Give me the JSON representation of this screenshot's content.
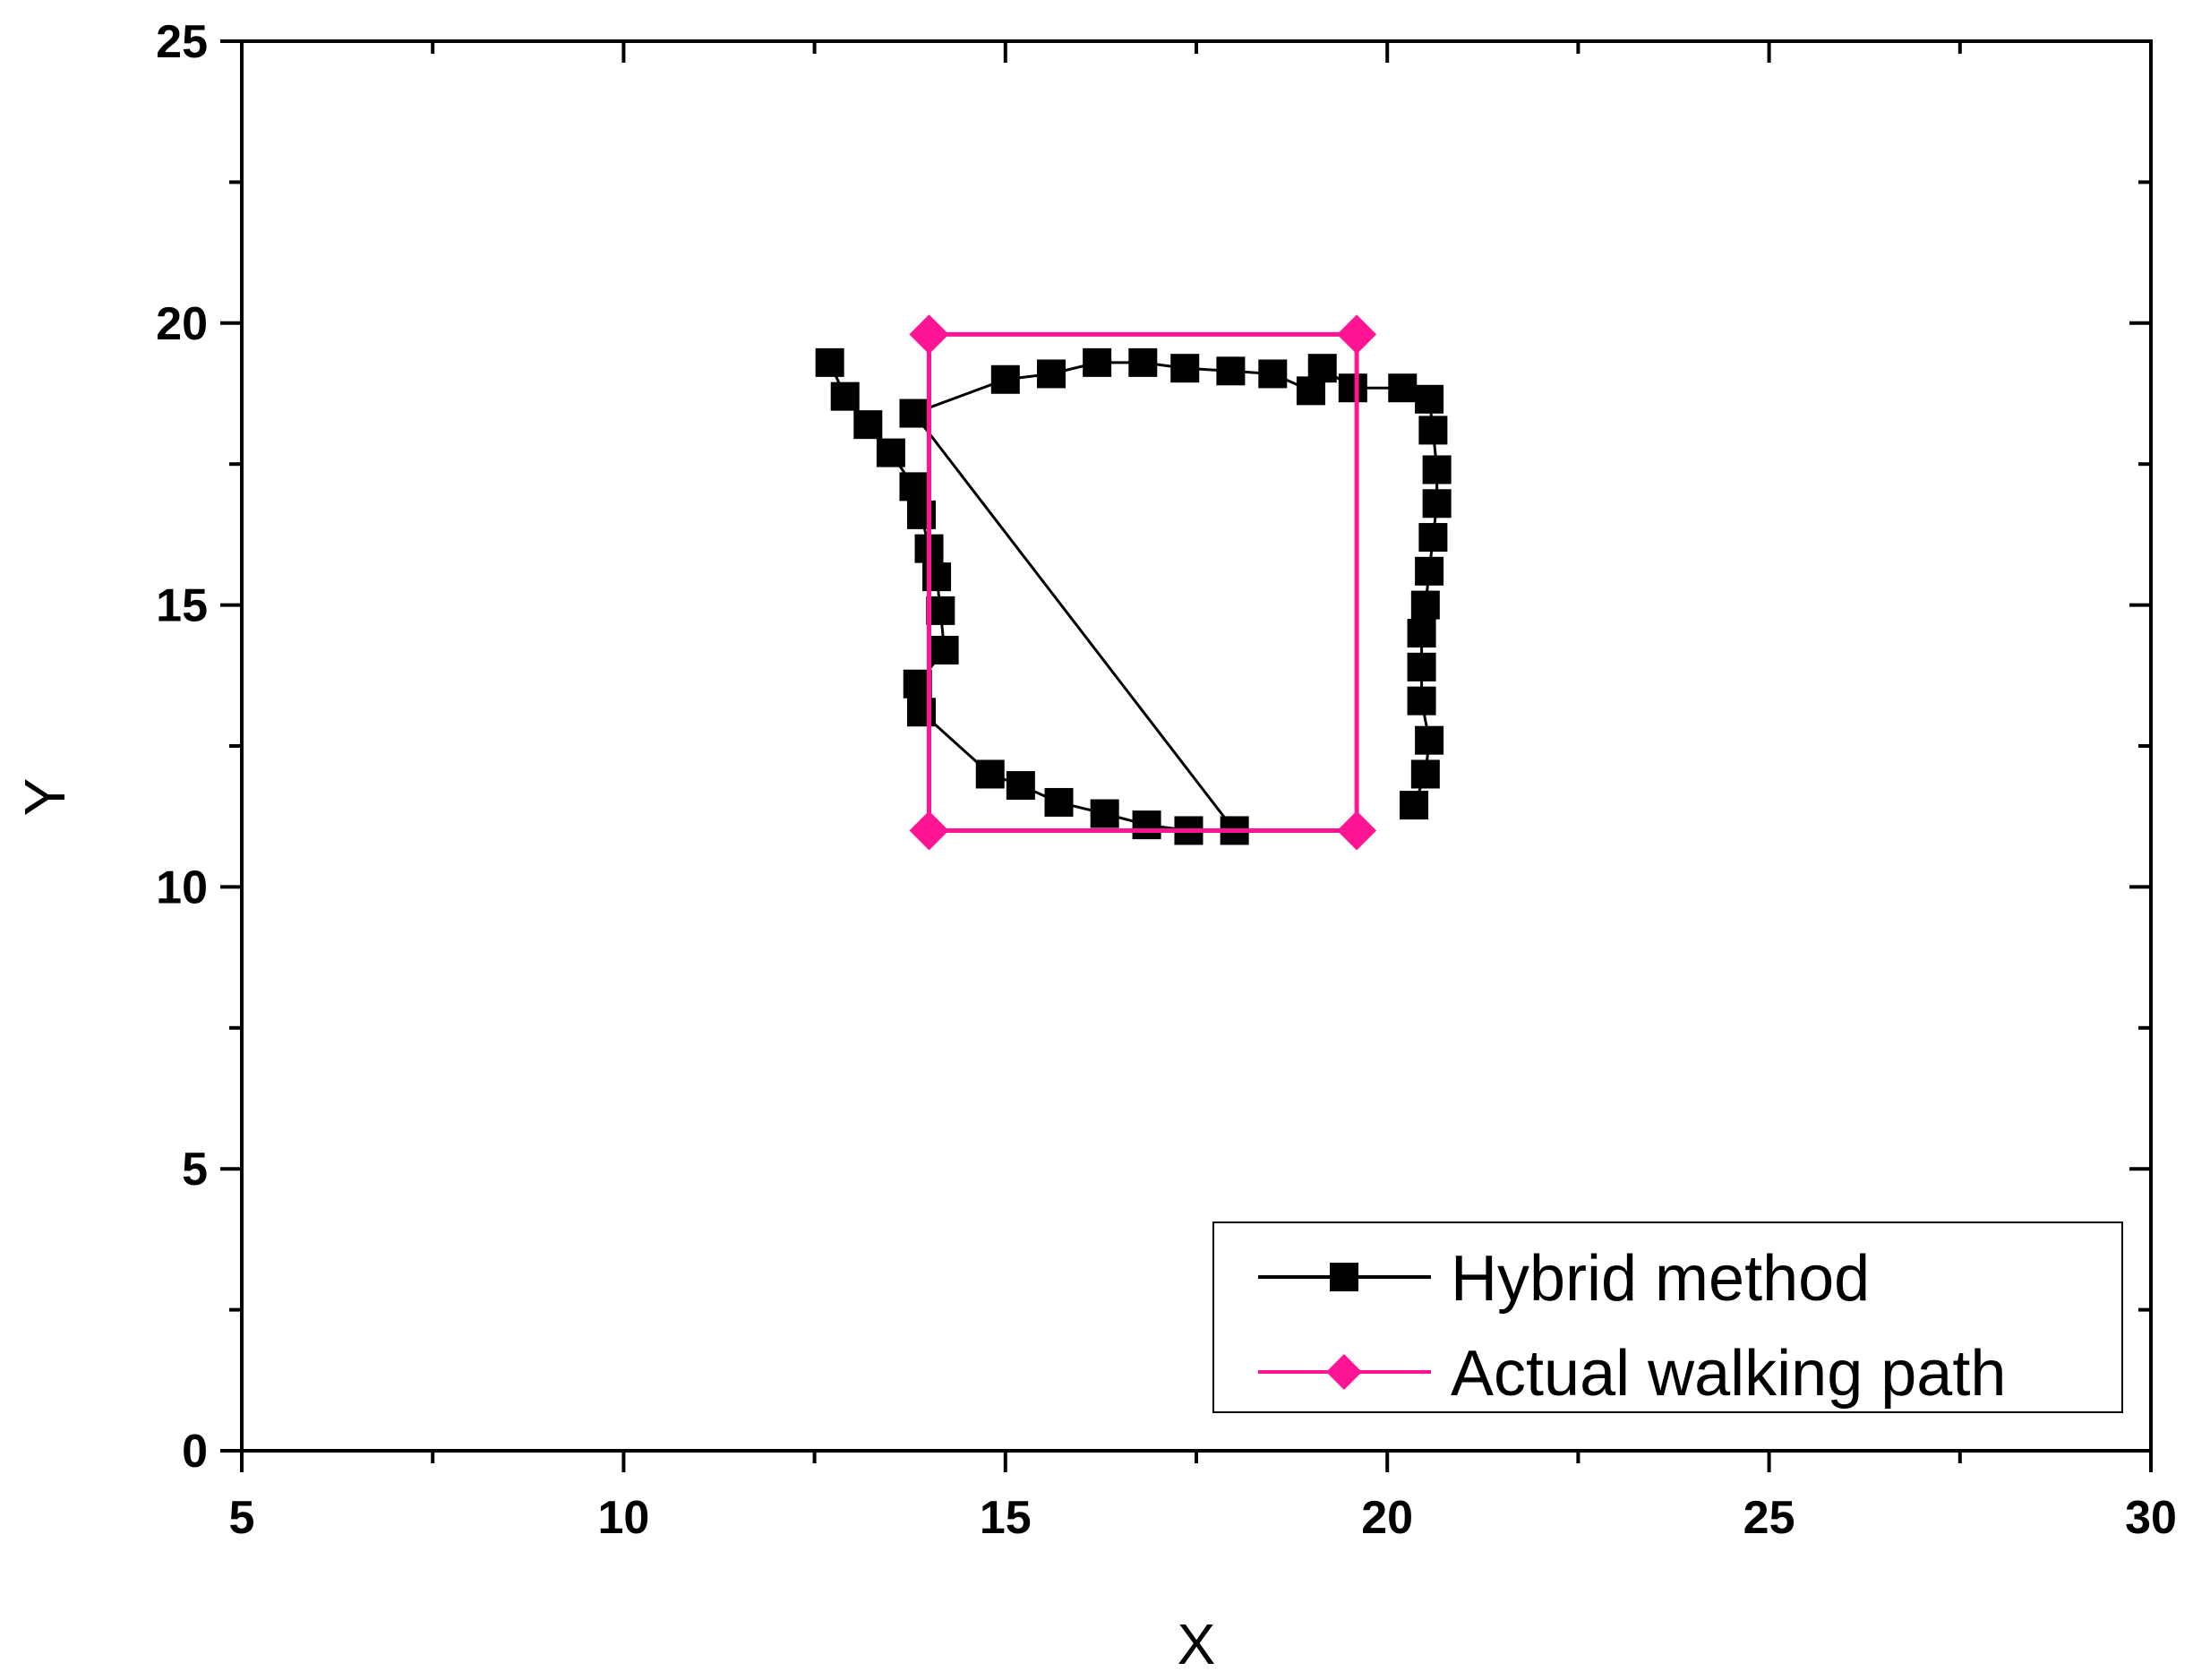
{
  "chart_data": {
    "type": "scatter",
    "xlabel": "X",
    "ylabel": "Y",
    "xlim": [
      5,
      30
    ],
    "ylim": [
      0,
      25
    ],
    "x_major_ticks": [
      5,
      10,
      15,
      20,
      25,
      30
    ],
    "y_major_ticks": [
      0,
      5,
      10,
      15,
      20,
      25
    ],
    "x_tick_labels": [
      "5",
      "10",
      "15",
      "20",
      "25",
      "30"
    ],
    "y_tick_labels": [
      "0",
      "5",
      "10",
      "15",
      "20",
      "25"
    ],
    "grid": false,
    "legend_position": "bottom-right",
    "series": [
      {
        "name": "Hybrid method",
        "color": "#000000",
        "marker": "square",
        "points": [
          [
            12.7,
            19.3
          ],
          [
            12.9,
            18.7
          ],
          [
            13.2,
            18.2
          ],
          [
            13.5,
            17.7
          ],
          [
            13.8,
            17.1
          ],
          [
            13.9,
            16.6
          ],
          [
            14.0,
            16.0
          ],
          [
            14.1,
            15.5
          ],
          [
            14.15,
            14.9
          ],
          [
            14.2,
            14.2
          ],
          [
            13.85,
            13.6
          ],
          [
            13.9,
            13.1
          ],
          [
            14.8,
            12.0
          ],
          [
            15.2,
            11.8
          ],
          [
            15.7,
            11.5
          ],
          [
            16.3,
            11.3
          ],
          [
            16.85,
            11.1
          ],
          [
            17.4,
            11.0
          ],
          [
            18.0,
            11.0
          ],
          [
            13.8,
            18.4
          ],
          [
            15.0,
            19.0
          ],
          [
            15.6,
            19.1
          ],
          [
            16.2,
            19.3
          ],
          [
            16.8,
            19.3
          ],
          [
            17.35,
            19.2
          ],
          [
            17.95,
            19.15
          ],
          [
            18.5,
            19.1
          ],
          [
            19.0,
            18.8
          ],
          [
            19.15,
            19.2
          ],
          [
            19.55,
            18.85
          ],
          [
            20.2,
            18.85
          ],
          [
            20.55,
            18.65
          ],
          [
            20.6,
            18.1
          ],
          [
            20.65,
            17.4
          ],
          [
            20.65,
            16.8
          ],
          [
            20.6,
            16.2
          ],
          [
            20.55,
            15.6
          ],
          [
            20.5,
            15.0
          ],
          [
            20.45,
            14.5
          ],
          [
            20.45,
            13.9
          ],
          [
            20.45,
            13.3
          ],
          [
            20.55,
            12.6
          ],
          [
            20.5,
            12.0
          ],
          [
            20.35,
            11.45
          ]
        ]
      },
      {
        "name": "Actual walking path",
        "color": "#ff1493",
        "marker": "diamond",
        "points": [
          [
            14.0,
            19.8
          ],
          [
            19.6,
            19.8
          ],
          [
            19.6,
            11.0
          ],
          [
            14.0,
            11.0
          ],
          [
            14.0,
            19.8
          ]
        ]
      }
    ]
  }
}
